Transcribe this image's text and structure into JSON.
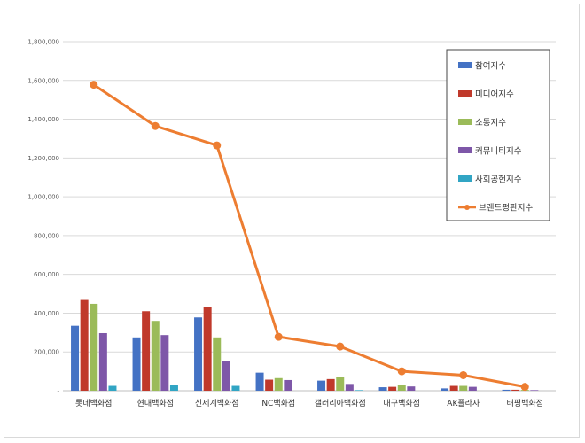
{
  "chart_data": {
    "type": "bar",
    "categories": [
      "롯데백화점",
      "현대백화점",
      "신세계백화점",
      "NC백화점",
      "갤러리아백화점",
      "대구백화점",
      "AK플라자",
      "태평백화점"
    ],
    "series": [
      {
        "name": "참여지수",
        "kind": "bar",
        "color": "#4472C4",
        "values": [
          335000,
          275000,
          378000,
          93000,
          52000,
          18000,
          12000,
          5000
        ]
      },
      {
        "name": "미디어지수",
        "kind": "bar",
        "color": "#C0392B",
        "values": [
          468000,
          410000,
          432000,
          57000,
          60000,
          20000,
          25000,
          5000
        ]
      },
      {
        "name": "소통지수",
        "kind": "bar",
        "color": "#9BBB59",
        "values": [
          448000,
          360000,
          275000,
          65000,
          70000,
          32000,
          25000,
          4000
        ]
      },
      {
        "name": "커뮤니티지수",
        "kind": "bar",
        "color": "#7E57A8",
        "values": [
          297000,
          287000,
          152000,
          55000,
          35000,
          22000,
          20000,
          3000
        ]
      },
      {
        "name": "사회공헌지수",
        "kind": "bar",
        "color": "#31A5C4",
        "values": [
          25000,
          28000,
          25000,
          0,
          3000,
          0,
          0,
          0
        ]
      },
      {
        "name": "브랜드평판지수",
        "kind": "line",
        "color": "#ED7D31",
        "values": [
          1578000,
          1365000,
          1265000,
          278000,
          228000,
          100000,
          80000,
          20000
        ]
      }
    ],
    "ylim": [
      0,
      1800000
    ],
    "yticks": [
      0,
      200000,
      400000,
      600000,
      800000,
      1000000,
      1200000,
      1400000,
      1600000,
      1800000
    ],
    "ytick_labels": [
      "-",
      "200,000",
      "400,000",
      "600,000",
      "800,000",
      "1,000,000",
      "1,200,000",
      "1,400,000",
      "1,600,000",
      "1,800,000"
    ],
    "grid": true,
    "legend_position": "top-right",
    "title": "",
    "xlabel": "",
    "ylabel": ""
  }
}
